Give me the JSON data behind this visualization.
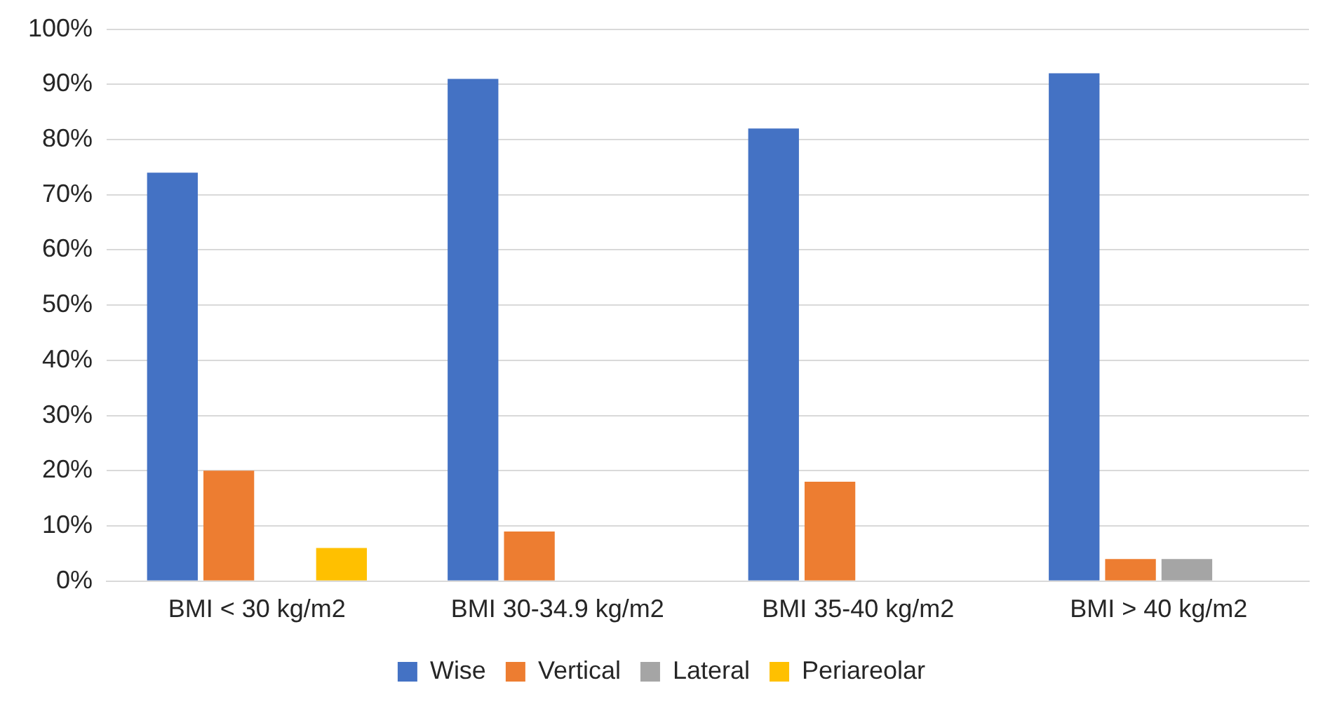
{
  "chart_data": {
    "type": "bar",
    "categories": [
      "BMI < 30 kg/m2",
      "BMI 30-34.9 kg/m2",
      "BMI 35-40 kg/m2",
      "BMI > 40 kg/m2"
    ],
    "series": [
      {
        "name": "Wise",
        "color": "#4472c4",
        "values": [
          74,
          91,
          82,
          92
        ]
      },
      {
        "name": "Vertical",
        "color": "#ed7d31",
        "values": [
          20,
          9,
          18,
          4
        ]
      },
      {
        "name": "Lateral",
        "color": "#a5a5a5",
        "values": [
          0,
          0,
          0,
          4
        ]
      },
      {
        "name": "Periareolar",
        "color": "#ffc000",
        "values": [
          6,
          0,
          0,
          0
        ]
      }
    ],
    "ylim": [
      0,
      100
    ],
    "yticks": [
      {
        "value": 0,
        "label": "0%"
      },
      {
        "value": 10,
        "label": "10%"
      },
      {
        "value": 20,
        "label": "20%"
      },
      {
        "value": 30,
        "label": "30%"
      },
      {
        "value": 40,
        "label": "40%"
      },
      {
        "value": 50,
        "label": "50%"
      },
      {
        "value": 60,
        "label": "60%"
      },
      {
        "value": 70,
        "label": "70%"
      },
      {
        "value": 80,
        "label": "80%"
      },
      {
        "value": 90,
        "label": "90%"
      },
      {
        "value": 100,
        "label": "100%"
      }
    ],
    "grid": "y",
    "legend": "bottom"
  }
}
